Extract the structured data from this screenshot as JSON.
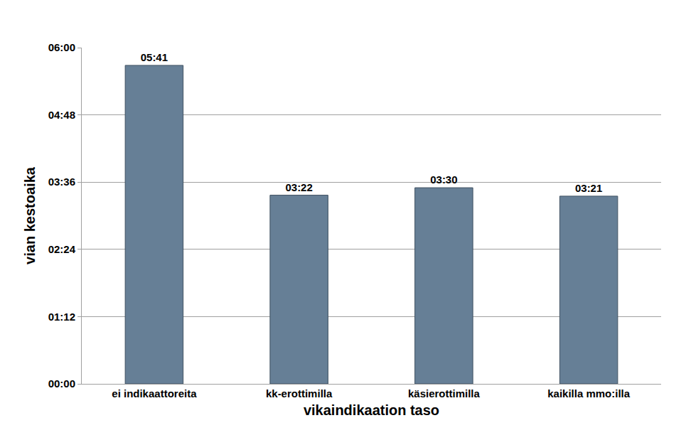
{
  "chart_data": {
    "type": "bar",
    "x_label": "vikaindikaation taso",
    "y_label": "vian kestoaika",
    "categories": [
      "ei indikaattoreita",
      "kk-erottimilla",
      "käsierottimilla",
      "kaikilla mmo:illa"
    ],
    "values": [
      341,
      202,
      210,
      201
    ],
    "value_labels": [
      "05:41",
      "03:22",
      "03:30",
      "03:21"
    ],
    "color": "#667f96",
    "ylim": [
      0,
      360
    ],
    "yticks": [
      {
        "value": 0,
        "label": "00:00"
      },
      {
        "value": 72,
        "label": "01:12"
      },
      {
        "value": 144,
        "label": "02:24"
      },
      {
        "value": 216,
        "label": "03:36"
      },
      {
        "value": 288,
        "label": "04:48"
      },
      {
        "value": 360,
        "label": "06:00"
      }
    ],
    "grid": true,
    "data_labels": true
  }
}
